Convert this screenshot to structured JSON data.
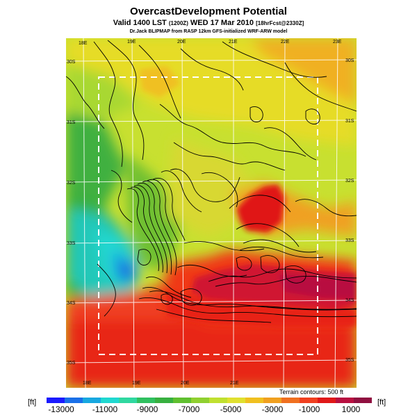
{
  "header": {
    "title": "OvercastDevelopment Potential",
    "valid_prefix": "Valid 1400 LST",
    "valid_zone": "(1200Z)",
    "valid_date": "WED 17 Mar 2010",
    "valid_forecast": "[18hrFcst@2330Z]",
    "credit": "Dr.Jack BLIPMAP from RASP 12km GFS-initialized WRF-ARW model"
  },
  "map": {
    "lon_labels_top": [
      "18E",
      "19E",
      "20E",
      "21E",
      "22E",
      "23E"
    ],
    "lon_labels_bottom": [
      "18E",
      "19E",
      "20E",
      "21E"
    ],
    "lat_labels_left": [
      "30S",
      "31S",
      "32S",
      "33S",
      "34S",
      "35S"
    ],
    "lat_labels_right": [
      "30S",
      "31S",
      "32S",
      "33S",
      "34S",
      "35S"
    ],
    "terrain_caption": "Terrain contours: 500 ft"
  },
  "legend": {
    "unit_left": "[ft]",
    "unit_right": "[ft]",
    "tick_labels": [
      "-13000",
      "-11000",
      "-9000",
      "-7000",
      "-5000",
      "-3000",
      "-1000",
      "1000"
    ],
    "colors": [
      "#1a1aff",
      "#1a70e8",
      "#18a8e0",
      "#20d8d0",
      "#30d8a0",
      "#30c060",
      "#38b040",
      "#60c030",
      "#90d030",
      "#c0e030",
      "#e0e030",
      "#f0c020",
      "#f0a020",
      "#f07020",
      "#f04020",
      "#e01818",
      "#b81040",
      "#901040"
    ]
  }
}
